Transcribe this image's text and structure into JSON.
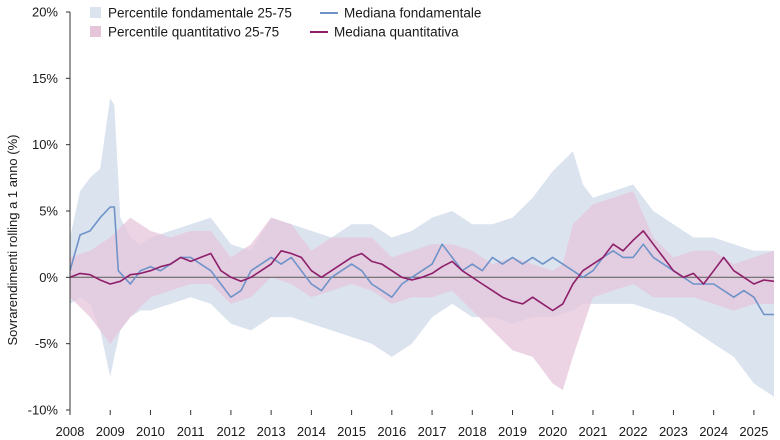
{
  "chart_data": {
    "type": "area",
    "ylabel": "Sovrarendimenti rolling a 1 anno (%)",
    "ylim": [
      -10,
      20
    ],
    "y_ticks": [
      "20%",
      "15%",
      "10%",
      "5%",
      "0%",
      "-5%",
      "-10%"
    ],
    "x_ticks": [
      "2008",
      "2009",
      "2010",
      "2011",
      "2012",
      "2013",
      "2014",
      "2015",
      "2016",
      "2017",
      "2018",
      "2019",
      "2020",
      "2021",
      "2022",
      "2023",
      "2024",
      "2025"
    ],
    "xlim": [
      2008.0,
      2025.5
    ],
    "colors": {
      "fund_band": "#dbe3ef",
      "fund_line": "#6f93c9",
      "quant_band": "#e6c5db",
      "quant_line": "#8e1f6b",
      "zero_line": "#6a6a6a"
    },
    "legend_position": "top-left",
    "series": [
      {
        "name": "Percentile fondamentale 25-75",
        "kind": "band",
        "x": [
          2008.0,
          2008.25,
          2008.5,
          2008.75,
          2009.0,
          2009.1,
          2009.25,
          2009.5,
          2009.75,
          2010.0,
          2010.5,
          2011.0,
          2011.5,
          2012.0,
          2012.5,
          2013.0,
          2013.5,
          2014.0,
          2014.5,
          2015.0,
          2015.5,
          2016.0,
          2016.5,
          2017.0,
          2017.5,
          2018.0,
          2018.5,
          2019.0,
          2019.5,
          2020.0,
          2020.5,
          2020.75,
          2021.0,
          2021.5,
          2022.0,
          2022.5,
          2023.0,
          2023.5,
          2024.0,
          2024.5,
          2025.0,
          2025.5
        ],
        "upper": [
          3.0,
          6.5,
          7.5,
          8.2,
          13.5,
          13.0,
          4.5,
          3.0,
          2.5,
          3.0,
          3.5,
          4.0,
          4.5,
          2.5,
          2.0,
          4.5,
          4.0,
          3.5,
          3.0,
          4.0,
          4.0,
          3.0,
          3.5,
          4.5,
          5.0,
          4.0,
          4.0,
          4.5,
          6.0,
          8.0,
          9.5,
          7.0,
          6.0,
          6.5,
          7.0,
          5.0,
          4.0,
          3.0,
          3.0,
          2.5,
          2.0,
          2.0
        ],
        "lower": [
          -2.0,
          -1.5,
          -2.0,
          -4.0,
          -7.5,
          -6.0,
          -4.0,
          -3.0,
          -2.5,
          -2.5,
          -2.0,
          -1.5,
          -2.0,
          -3.5,
          -4.0,
          -3.0,
          -3.0,
          -3.5,
          -4.0,
          -4.5,
          -5.0,
          -6.0,
          -5.0,
          -3.0,
          -2.0,
          -3.0,
          -3.0,
          -3.5,
          -3.0,
          -3.0,
          -2.5,
          -2.0,
          -2.0,
          -2.0,
          -2.0,
          -2.5,
          -3.0,
          -4.0,
          -5.0,
          -6.0,
          -8.0,
          -9.0
        ]
      },
      {
        "name": "Percentile quantitativo 25-75",
        "kind": "band",
        "x": [
          2008.0,
          2008.5,
          2009.0,
          2009.5,
          2010.0,
          2010.5,
          2011.0,
          2011.5,
          2012.0,
          2012.5,
          2013.0,
          2013.5,
          2014.0,
          2014.5,
          2015.0,
          2015.5,
          2016.0,
          2016.5,
          2017.0,
          2017.5,
          2018.0,
          2018.5,
          2019.0,
          2019.5,
          2020.0,
          2020.25,
          2020.5,
          2021.0,
          2021.5,
          2022.0,
          2022.5,
          2023.0,
          2023.5,
          2024.0,
          2024.5,
          2025.0,
          2025.5
        ],
        "upper": [
          1.5,
          2.0,
          3.0,
          4.5,
          3.5,
          3.0,
          3.5,
          3.5,
          1.5,
          2.5,
          4.5,
          4.0,
          2.0,
          3.0,
          3.0,
          3.0,
          1.5,
          2.0,
          2.5,
          2.5,
          2.0,
          1.0,
          1.5,
          1.0,
          0.5,
          1.0,
          4.0,
          5.5,
          6.0,
          6.5,
          3.0,
          1.5,
          2.0,
          2.0,
          1.0,
          1.5,
          2.0
        ],
        "lower": [
          -1.5,
          -3.0,
          -5.0,
          -3.0,
          -1.5,
          -1.0,
          -0.5,
          -0.5,
          -2.0,
          -1.5,
          0.0,
          -0.5,
          -1.5,
          -1.0,
          -0.5,
          -1.0,
          -2.0,
          -1.5,
          -1.5,
          -1.0,
          -2.5,
          -4.0,
          -5.5,
          -6.0,
          -8.0,
          -8.5,
          -6.0,
          -1.5,
          -1.0,
          -0.5,
          -1.5,
          -1.5,
          -1.5,
          -2.0,
          -2.5,
          -2.0,
          -2.0
        ]
      },
      {
        "name": "Mediana fondamentale",
        "kind": "line",
        "x": [
          2008.0,
          2008.25,
          2008.5,
          2008.75,
          2009.0,
          2009.1,
          2009.2,
          2009.5,
          2009.75,
          2010.0,
          2010.25,
          2010.5,
          2010.75,
          2011.0,
          2011.25,
          2011.5,
          2011.75,
          2012.0,
          2012.25,
          2012.5,
          2012.75,
          2013.0,
          2013.25,
          2013.5,
          2013.75,
          2014.0,
          2014.25,
          2014.5,
          2014.75,
          2015.0,
          2015.25,
          2015.5,
          2015.75,
          2016.0,
          2016.25,
          2016.5,
          2016.75,
          2017.0,
          2017.25,
          2017.5,
          2017.75,
          2018.0,
          2018.25,
          2018.5,
          2018.75,
          2019.0,
          2019.25,
          2019.5,
          2019.75,
          2020.0,
          2020.25,
          2020.5,
          2020.75,
          2021.0,
          2021.25,
          2021.5,
          2021.75,
          2022.0,
          2022.25,
          2022.5,
          2022.75,
          2023.0,
          2023.25,
          2023.5,
          2023.75,
          2024.0,
          2024.25,
          2024.5,
          2024.75,
          2025.0,
          2025.25,
          2025.5
        ],
        "values": [
          0.5,
          3.2,
          3.5,
          4.5,
          5.3,
          5.3,
          0.5,
          -0.5,
          0.5,
          0.8,
          0.5,
          1.0,
          1.5,
          1.5,
          1.0,
          0.5,
          -0.5,
          -1.5,
          -1.0,
          0.5,
          1.0,
          1.5,
          1.0,
          1.5,
          0.5,
          -0.5,
          -1.0,
          0.0,
          0.5,
          1.0,
          0.5,
          -0.5,
          -1.0,
          -1.5,
          -0.5,
          0.0,
          0.5,
          1.0,
          2.5,
          1.5,
          0.5,
          1.0,
          0.5,
          1.5,
          1.0,
          1.5,
          1.0,
          1.5,
          1.0,
          1.5,
          1.0,
          0.5,
          0.0,
          0.5,
          1.5,
          2.0,
          1.5,
          1.5,
          2.5,
          1.5,
          1.0,
          0.5,
          0.0,
          -0.5,
          -0.5,
          -0.5,
          -1.0,
          -1.5,
          -1.0,
          -1.5,
          -2.8,
          -2.8
        ]
      },
      {
        "name": "Mediana quantitativa",
        "kind": "line",
        "x": [
          2008.0,
          2008.25,
          2008.5,
          2008.75,
          2009.0,
          2009.25,
          2009.5,
          2009.75,
          2010.0,
          2010.25,
          2010.5,
          2010.75,
          2011.0,
          2011.25,
          2011.5,
          2011.75,
          2012.0,
          2012.25,
          2012.5,
          2012.75,
          2013.0,
          2013.25,
          2013.5,
          2013.75,
          2014.0,
          2014.25,
          2014.5,
          2014.75,
          2015.0,
          2015.25,
          2015.5,
          2015.75,
          2016.0,
          2016.25,
          2016.5,
          2016.75,
          2017.0,
          2017.25,
          2017.5,
          2017.75,
          2018.0,
          2018.25,
          2018.5,
          2018.75,
          2019.0,
          2019.25,
          2019.5,
          2019.75,
          2020.0,
          2020.25,
          2020.5,
          2020.75,
          2021.0,
          2021.25,
          2021.5,
          2021.75,
          2022.0,
          2022.25,
          2022.5,
          2022.75,
          2023.0,
          2023.25,
          2023.5,
          2023.75,
          2024.0,
          2024.25,
          2024.5,
          2024.75,
          2025.0,
          2025.25,
          2025.5
        ],
        "values": [
          0.0,
          0.3,
          0.2,
          -0.2,
          -0.5,
          -0.3,
          0.2,
          0.3,
          0.5,
          0.8,
          1.0,
          1.5,
          1.2,
          1.5,
          1.8,
          0.5,
          0.0,
          -0.3,
          0.0,
          0.5,
          1.0,
          2.0,
          1.8,
          1.5,
          0.5,
          0.0,
          0.5,
          1.0,
          1.5,
          1.8,
          1.2,
          1.0,
          0.5,
          0.0,
          -0.2,
          0.0,
          0.3,
          0.8,
          1.2,
          0.5,
          0.0,
          -0.5,
          -1.0,
          -1.5,
          -1.8,
          -2.0,
          -1.5,
          -2.0,
          -2.5,
          -2.0,
          -0.5,
          0.5,
          1.0,
          1.5,
          2.5,
          2.0,
          2.8,
          3.5,
          2.5,
          1.5,
          0.5,
          0.0,
          0.3,
          -0.5,
          0.5,
          1.5,
          0.5,
          0.0,
          -0.5,
          -0.2,
          -0.3
        ]
      }
    ]
  }
}
